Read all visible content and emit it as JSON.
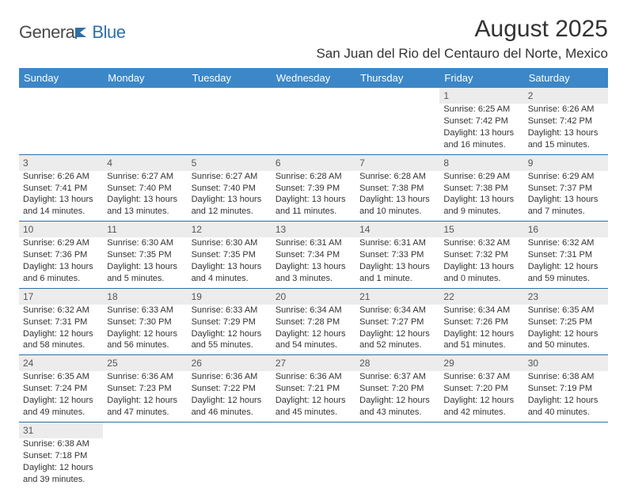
{
  "logo": {
    "part1": "Genera",
    "part2": "Blue"
  },
  "title": "August 2025",
  "location": "San Juan del Rio del Centauro del Norte, Mexico",
  "colors": {
    "header_bg": "#3b87c8",
    "header_fg": "#ffffff",
    "daynum_bg": "#ececec",
    "rule": "#2f6fa7",
    "text": "#333333",
    "logo_gray": "#4a4a4a",
    "logo_blue": "#2f6fa7"
  },
  "weekdays": [
    "Sunday",
    "Monday",
    "Tuesday",
    "Wednesday",
    "Thursday",
    "Friday",
    "Saturday"
  ],
  "weeks": [
    [
      null,
      null,
      null,
      null,
      null,
      {
        "n": "1",
        "sr": "Sunrise: 6:25 AM",
        "ss": "Sunset: 7:42 PM",
        "d1": "Daylight: 13 hours",
        "d2": "and 16 minutes."
      },
      {
        "n": "2",
        "sr": "Sunrise: 6:26 AM",
        "ss": "Sunset: 7:42 PM",
        "d1": "Daylight: 13 hours",
        "d2": "and 15 minutes."
      }
    ],
    [
      {
        "n": "3",
        "sr": "Sunrise: 6:26 AM",
        "ss": "Sunset: 7:41 PM",
        "d1": "Daylight: 13 hours",
        "d2": "and 14 minutes."
      },
      {
        "n": "4",
        "sr": "Sunrise: 6:27 AM",
        "ss": "Sunset: 7:40 PM",
        "d1": "Daylight: 13 hours",
        "d2": "and 13 minutes."
      },
      {
        "n": "5",
        "sr": "Sunrise: 6:27 AM",
        "ss": "Sunset: 7:40 PM",
        "d1": "Daylight: 13 hours",
        "d2": "and 12 minutes."
      },
      {
        "n": "6",
        "sr": "Sunrise: 6:28 AM",
        "ss": "Sunset: 7:39 PM",
        "d1": "Daylight: 13 hours",
        "d2": "and 11 minutes."
      },
      {
        "n": "7",
        "sr": "Sunrise: 6:28 AM",
        "ss": "Sunset: 7:38 PM",
        "d1": "Daylight: 13 hours",
        "d2": "and 10 minutes."
      },
      {
        "n": "8",
        "sr": "Sunrise: 6:29 AM",
        "ss": "Sunset: 7:38 PM",
        "d1": "Daylight: 13 hours",
        "d2": "and 9 minutes."
      },
      {
        "n": "9",
        "sr": "Sunrise: 6:29 AM",
        "ss": "Sunset: 7:37 PM",
        "d1": "Daylight: 13 hours",
        "d2": "and 7 minutes."
      }
    ],
    [
      {
        "n": "10",
        "sr": "Sunrise: 6:29 AM",
        "ss": "Sunset: 7:36 PM",
        "d1": "Daylight: 13 hours",
        "d2": "and 6 minutes."
      },
      {
        "n": "11",
        "sr": "Sunrise: 6:30 AM",
        "ss": "Sunset: 7:35 PM",
        "d1": "Daylight: 13 hours",
        "d2": "and 5 minutes."
      },
      {
        "n": "12",
        "sr": "Sunrise: 6:30 AM",
        "ss": "Sunset: 7:35 PM",
        "d1": "Daylight: 13 hours",
        "d2": "and 4 minutes."
      },
      {
        "n": "13",
        "sr": "Sunrise: 6:31 AM",
        "ss": "Sunset: 7:34 PM",
        "d1": "Daylight: 13 hours",
        "d2": "and 3 minutes."
      },
      {
        "n": "14",
        "sr": "Sunrise: 6:31 AM",
        "ss": "Sunset: 7:33 PM",
        "d1": "Daylight: 13 hours",
        "d2": "and 1 minute."
      },
      {
        "n": "15",
        "sr": "Sunrise: 6:32 AM",
        "ss": "Sunset: 7:32 PM",
        "d1": "Daylight: 13 hours",
        "d2": "and 0 minutes."
      },
      {
        "n": "16",
        "sr": "Sunrise: 6:32 AM",
        "ss": "Sunset: 7:31 PM",
        "d1": "Daylight: 12 hours",
        "d2": "and 59 minutes."
      }
    ],
    [
      {
        "n": "17",
        "sr": "Sunrise: 6:32 AM",
        "ss": "Sunset: 7:31 PM",
        "d1": "Daylight: 12 hours",
        "d2": "and 58 minutes."
      },
      {
        "n": "18",
        "sr": "Sunrise: 6:33 AM",
        "ss": "Sunset: 7:30 PM",
        "d1": "Daylight: 12 hours",
        "d2": "and 56 minutes."
      },
      {
        "n": "19",
        "sr": "Sunrise: 6:33 AM",
        "ss": "Sunset: 7:29 PM",
        "d1": "Daylight: 12 hours",
        "d2": "and 55 minutes."
      },
      {
        "n": "20",
        "sr": "Sunrise: 6:34 AM",
        "ss": "Sunset: 7:28 PM",
        "d1": "Daylight: 12 hours",
        "d2": "and 54 minutes."
      },
      {
        "n": "21",
        "sr": "Sunrise: 6:34 AM",
        "ss": "Sunset: 7:27 PM",
        "d1": "Daylight: 12 hours",
        "d2": "and 52 minutes."
      },
      {
        "n": "22",
        "sr": "Sunrise: 6:34 AM",
        "ss": "Sunset: 7:26 PM",
        "d1": "Daylight: 12 hours",
        "d2": "and 51 minutes."
      },
      {
        "n": "23",
        "sr": "Sunrise: 6:35 AM",
        "ss": "Sunset: 7:25 PM",
        "d1": "Daylight: 12 hours",
        "d2": "and 50 minutes."
      }
    ],
    [
      {
        "n": "24",
        "sr": "Sunrise: 6:35 AM",
        "ss": "Sunset: 7:24 PM",
        "d1": "Daylight: 12 hours",
        "d2": "and 49 minutes."
      },
      {
        "n": "25",
        "sr": "Sunrise: 6:36 AM",
        "ss": "Sunset: 7:23 PM",
        "d1": "Daylight: 12 hours",
        "d2": "and 47 minutes."
      },
      {
        "n": "26",
        "sr": "Sunrise: 6:36 AM",
        "ss": "Sunset: 7:22 PM",
        "d1": "Daylight: 12 hours",
        "d2": "and 46 minutes."
      },
      {
        "n": "27",
        "sr": "Sunrise: 6:36 AM",
        "ss": "Sunset: 7:21 PM",
        "d1": "Daylight: 12 hours",
        "d2": "and 45 minutes."
      },
      {
        "n": "28",
        "sr": "Sunrise: 6:37 AM",
        "ss": "Sunset: 7:20 PM",
        "d1": "Daylight: 12 hours",
        "d2": "and 43 minutes."
      },
      {
        "n": "29",
        "sr": "Sunrise: 6:37 AM",
        "ss": "Sunset: 7:20 PM",
        "d1": "Daylight: 12 hours",
        "d2": "and 42 minutes."
      },
      {
        "n": "30",
        "sr": "Sunrise: 6:38 AM",
        "ss": "Sunset: 7:19 PM",
        "d1": "Daylight: 12 hours",
        "d2": "and 40 minutes."
      }
    ],
    [
      {
        "n": "31",
        "sr": "Sunrise: 6:38 AM",
        "ss": "Sunset: 7:18 PM",
        "d1": "Daylight: 12 hours",
        "d2": "and 39 minutes."
      },
      null,
      null,
      null,
      null,
      null,
      null
    ]
  ]
}
